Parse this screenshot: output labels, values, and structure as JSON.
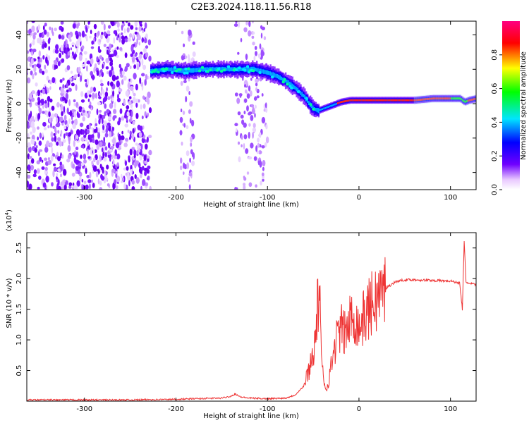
{
  "figure_title": "C2E3.2024.118.11.56.R18",
  "chart_data": [
    {
      "type": "heatmap",
      "xlabel": "Height of straight line (km)",
      "ylabel": "Frequency (Hz)",
      "xlim": [
        -363,
        128
      ],
      "ylim": [
        -50,
        48
      ],
      "xticks": [
        -300,
        -200,
        -100,
        0,
        100
      ],
      "yticks": [
        -40,
        -20,
        0,
        20,
        40
      ],
      "colorbar": {
        "label": "Normalized spectral amplitude",
        "range": [
          0,
          1
        ],
        "ticks": [
          0.0,
          0.2,
          0.4,
          0.6,
          0.8
        ],
        "colormap": [
          "#ffffff",
          "#e8c8ff",
          "#7000ff",
          "#0000ff",
          "#00e5ff",
          "#00ff00",
          "#ffff00",
          "#ff0000",
          "#ff0080"
        ]
      },
      "noise_regions": [
        [
          -363,
          -228
        ],
        [
          -195,
          -180
        ],
        [
          -135,
          -100
        ]
      ],
      "ridge": {
        "x": [
          -228,
          -210,
          -190,
          -170,
          -150,
          -130,
          -115,
          -100,
          -90,
          -80,
          -70,
          -60,
          -55,
          -50,
          -45,
          -40,
          -30,
          -20,
          -10,
          0,
          20,
          40,
          60,
          80,
          100,
          110,
          115,
          120,
          128
        ],
        "y": [
          19,
          20,
          19,
          20,
          20,
          20,
          20,
          18,
          16,
          13,
          9,
          4,
          0,
          -3,
          -4,
          -3,
          -1,
          1,
          2,
          2,
          2,
          2,
          2,
          3,
          3,
          3,
          1,
          2,
          3
        ]
      }
    },
    {
      "type": "line",
      "xlabel": "Height of straight line (km)",
      "ylabel": "SNR (10 * v/v)",
      "yscale_label": "(x10",
      "yscale_exp": "4",
      "yscale_close": ")",
      "xlim": [
        -363,
        128
      ],
      "ylim": [
        0,
        2.75
      ],
      "xticks": [
        -300,
        -200,
        -100,
        0,
        100
      ],
      "yticks": [
        0.5,
        1.0,
        1.5,
        2.0,
        2.5
      ],
      "color": "#ee3333",
      "series": [
        {
          "x": [
            -363,
            -300,
            -250,
            -200,
            -180,
            -150,
            -140,
            -135,
            -130,
            -120,
            -100,
            -80,
            -70,
            -60,
            -55,
            -50,
            -47,
            -45,
            -43,
            -42,
            -40,
            -38,
            -35,
            -30,
            -25,
            -20,
            -15,
            -10,
            -5,
            0,
            10,
            20,
            30,
            40,
            50,
            60,
            80,
            100,
            110,
            113,
            115,
            117,
            120,
            128
          ],
          "y": [
            0.02,
            0.02,
            0.02,
            0.03,
            0.04,
            0.05,
            0.08,
            0.12,
            0.07,
            0.05,
            0.04,
            0.05,
            0.1,
            0.25,
            0.5,
            0.8,
            1.1,
            1.6,
            1.9,
            1.0,
            0.5,
            0.3,
            0.2,
            0.6,
            1.0,
            1.2,
            1.1,
            1.3,
            1.4,
            1.2,
            1.5,
            1.7,
            1.85,
            1.95,
            1.98,
            1.98,
            1.97,
            1.96,
            1.93,
            1.5,
            2.6,
            1.95,
            1.92,
            1.9
          ]
        }
      ]
    }
  ]
}
